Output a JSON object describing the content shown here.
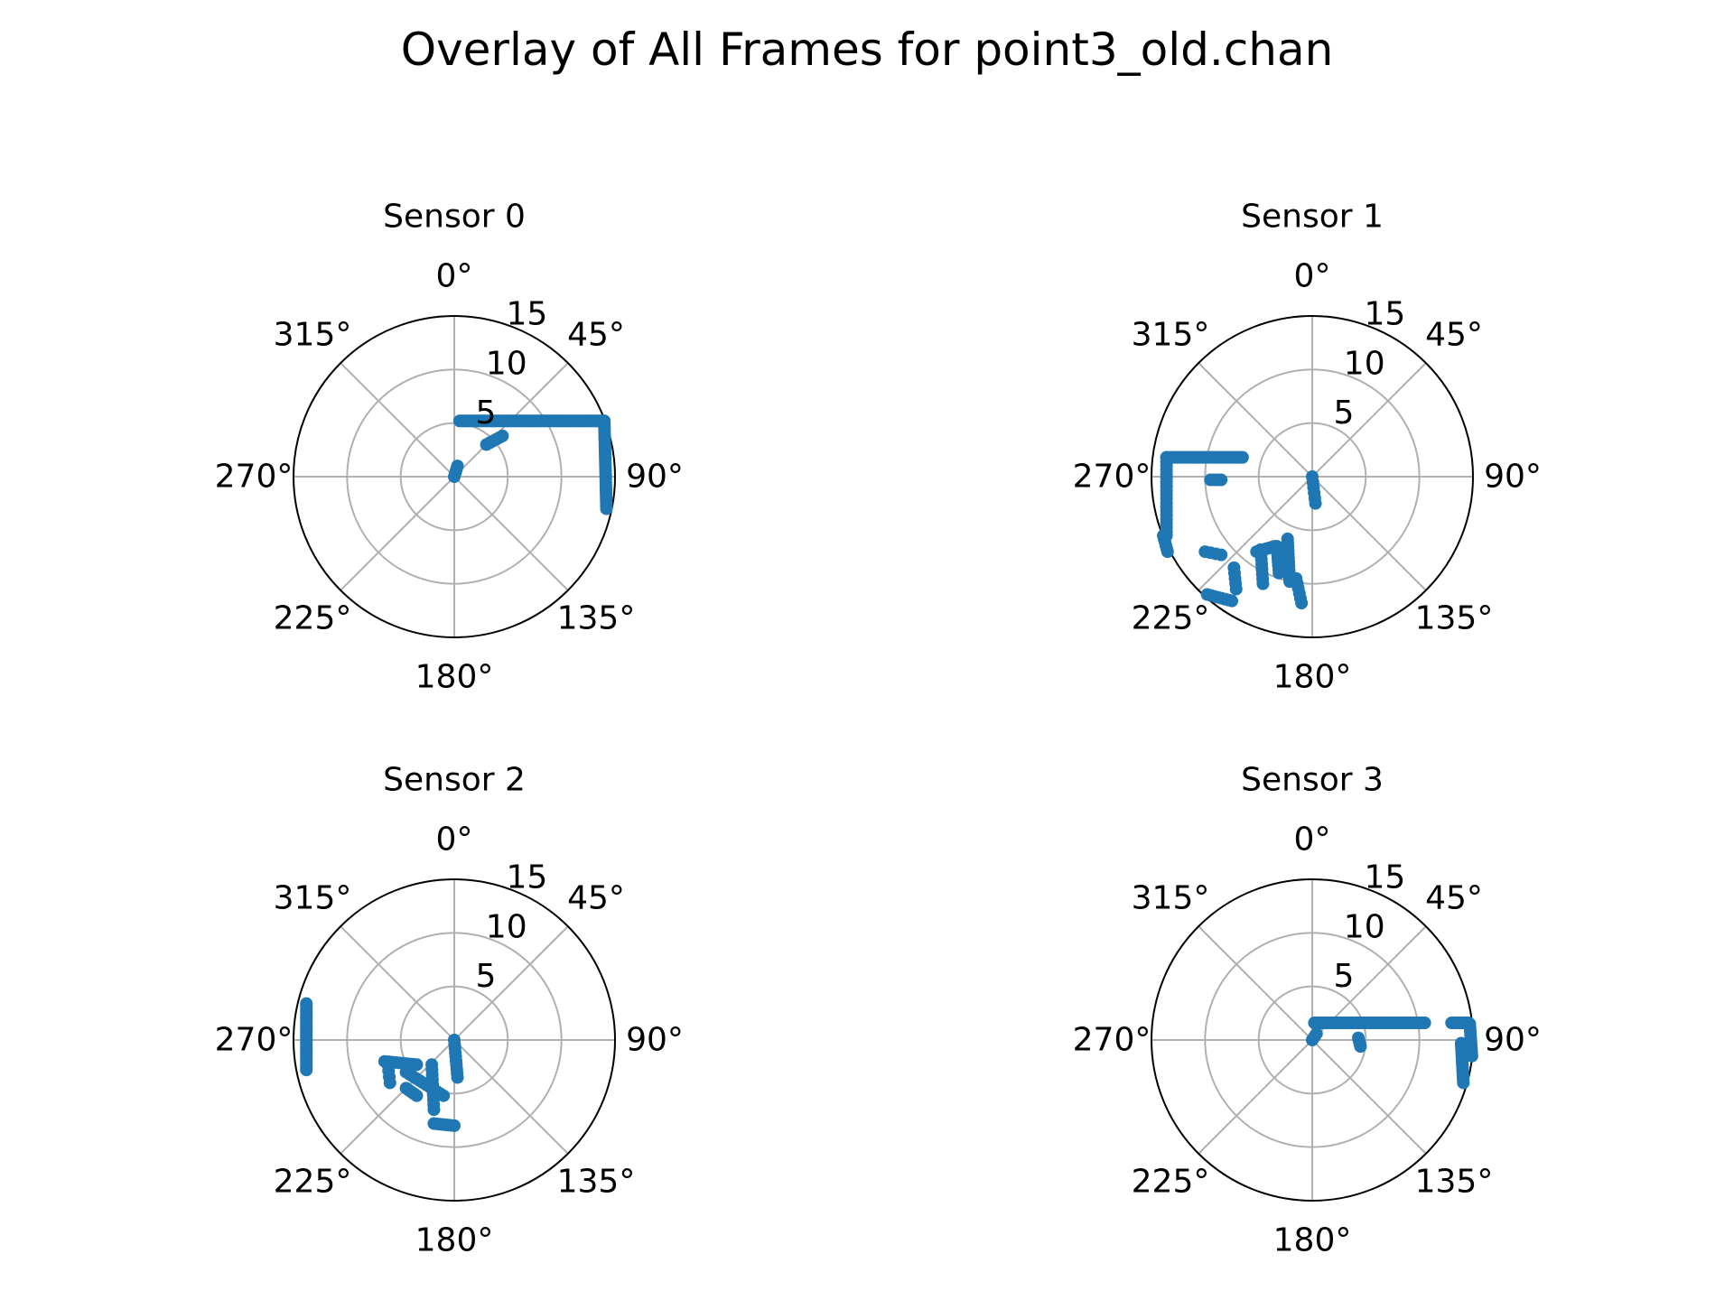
{
  "figure": {
    "suptitle": "Overlay of All Frames for point3_old.chan"
  },
  "colors": {
    "points": "#1f77b4",
    "grid": "#b0b0b0",
    "frame": "#000000"
  },
  "chart_data": [
    {
      "type": "scatter",
      "projection": "polar",
      "theta_direction": "clockwise",
      "theta_zero": "top",
      "title": "Sensor 0",
      "theta_tick_labels": [
        "0°",
        "45°",
        "90°",
        "135°",
        "180°",
        "225°",
        "270°",
        "315°"
      ],
      "r_ticks": [
        5,
        10,
        15
      ],
      "r_max": 15,
      "grid": true,
      "point_groups": [
        {
          "x": [
            0.5,
            14.0
          ],
          "y": 5.2,
          "n": 90
        },
        {
          "x": [
            14.0,
            14.2
          ],
          "y": [
            5.2,
            -3.0
          ],
          "n": 30
        },
        {
          "x": [
            3.0,
            4.5
          ],
          "y": [
            3.0,
            3.8
          ],
          "n": 6
        },
        {
          "x": [
            0.0,
            0.3
          ],
          "y": [
            0.0,
            1.0
          ],
          "n": 5
        }
      ]
    },
    {
      "type": "scatter",
      "projection": "polar",
      "theta_direction": "clockwise",
      "theta_zero": "top",
      "title": "Sensor 1",
      "theta_tick_labels": [
        "0°",
        "45°",
        "90°",
        "135°",
        "180°",
        "225°",
        "270°",
        "315°"
      ],
      "r_ticks": [
        5,
        10,
        15
      ],
      "r_max": 15,
      "grid": true,
      "point_groups": [
        {
          "x": [
            -13.6,
            -6.5
          ],
          "y": 1.8,
          "n": 50
        },
        {
          "x": -13.6,
          "y": [
            1.8,
            -5.5
          ],
          "n": 20
        },
        {
          "x": [
            -9.5,
            -8.5
          ],
          "y": -0.3,
          "n": 4
        },
        {
          "x": [
            -13.9,
            -13.5
          ],
          "y": [
            -5.5,
            -7.0
          ],
          "n": 6
        },
        {
          "x": [
            -10.0,
            -8.5
          ],
          "y": [
            -7.0,
            -7.3
          ],
          "n": 4
        },
        {
          "x": [
            -9.8,
            -7.5
          ],
          "y": [
            -11.0,
            -11.6
          ],
          "n": 8
        },
        {
          "x": [
            -7.3,
            -7.1
          ],
          "y": [
            -8.5,
            -10.5
          ],
          "n": 5
        },
        {
          "x": [
            -5.2,
            -3.5
          ],
          "y": [
            -7.0,
            -6.5
          ],
          "n": 10
        },
        {
          "x": [
            -4.8,
            -4.6
          ],
          "y": [
            -6.8,
            -10.0
          ],
          "n": 8
        },
        {
          "x": [
            -3.3,
            -3.1
          ],
          "y": [
            -6.5,
            -9.0
          ],
          "n": 8
        },
        {
          "x": [
            -2.3,
            -2.1
          ],
          "y": [
            -5.8,
            -9.8
          ],
          "n": 12
        },
        {
          "x": [
            -1.5,
            -1.0
          ],
          "y": [
            -9.5,
            -11.8
          ],
          "n": 6
        },
        {
          "x": [
            0.0,
            0.3
          ],
          "y": [
            0.0,
            -2.5
          ],
          "n": 6
        }
      ]
    },
    {
      "type": "scatter",
      "projection": "polar",
      "theta_direction": "clockwise",
      "theta_zero": "top",
      "title": "Sensor 2",
      "theta_tick_labels": [
        "0°",
        "45°",
        "90°",
        "135°",
        "180°",
        "225°",
        "270°",
        "315°"
      ],
      "r_ticks": [
        5,
        10,
        15
      ],
      "r_max": 15,
      "grid": true,
      "point_groups": [
        {
          "x": [
            -13.8,
            -13.8
          ],
          "y": [
            3.4,
            -2.8
          ],
          "n": 25
        },
        {
          "x": [
            -6.5,
            -3.5
          ],
          "y": [
            -2.0,
            -2.3
          ],
          "n": 10
        },
        {
          "x": [
            -6.2,
            -6.0
          ],
          "y": [
            -2.3,
            -4.0
          ],
          "n": 4
        },
        {
          "x": [
            -4.5,
            -1.0
          ],
          "y": [
            -3.0,
            -5.2
          ],
          "n": 12
        },
        {
          "x": [
            -4.5,
            -3.5
          ],
          "y": [
            -4.5,
            -5.2
          ],
          "n": 6
        },
        {
          "x": [
            -2.1,
            -1.9
          ],
          "y": [
            -2.3,
            -6.5
          ],
          "n": 10
        },
        {
          "x": [
            -1.9,
            0.0
          ],
          "y": [
            -7.8,
            -8.0
          ],
          "n": 8
        },
        {
          "x": [
            0.0,
            0.3
          ],
          "y": [
            0.0,
            -3.5
          ],
          "n": 10
        }
      ]
    },
    {
      "type": "scatter",
      "projection": "polar",
      "theta_direction": "clockwise",
      "theta_zero": "top",
      "title": "Sensor 3",
      "theta_tick_labels": [
        "0°",
        "45°",
        "90°",
        "135°",
        "180°",
        "225°",
        "270°",
        "315°"
      ],
      "r_ticks": [
        5,
        10,
        15
      ],
      "r_max": 15,
      "grid": true,
      "point_groups": [
        {
          "x": [
            0.2,
            10.5
          ],
          "y": 1.6,
          "n": 60
        },
        {
          "x": [
            13.0,
            14.6
          ],
          "y": 1.6,
          "n": 10
        },
        {
          "x": [
            4.3,
            4.5
          ],
          "y": [
            0.2,
            -0.6
          ],
          "n": 4
        },
        {
          "x": [
            13.9,
            14.1
          ],
          "y": [
            -0.3,
            -4.0
          ],
          "n": 18
        },
        {
          "x": [
            14.7,
            14.9
          ],
          "y": [
            1.5,
            -1.5
          ],
          "n": 10
        },
        {
          "x": [
            0.0,
            0.4
          ],
          "y": [
            0.0,
            0.6
          ],
          "n": 4
        }
      ]
    }
  ]
}
